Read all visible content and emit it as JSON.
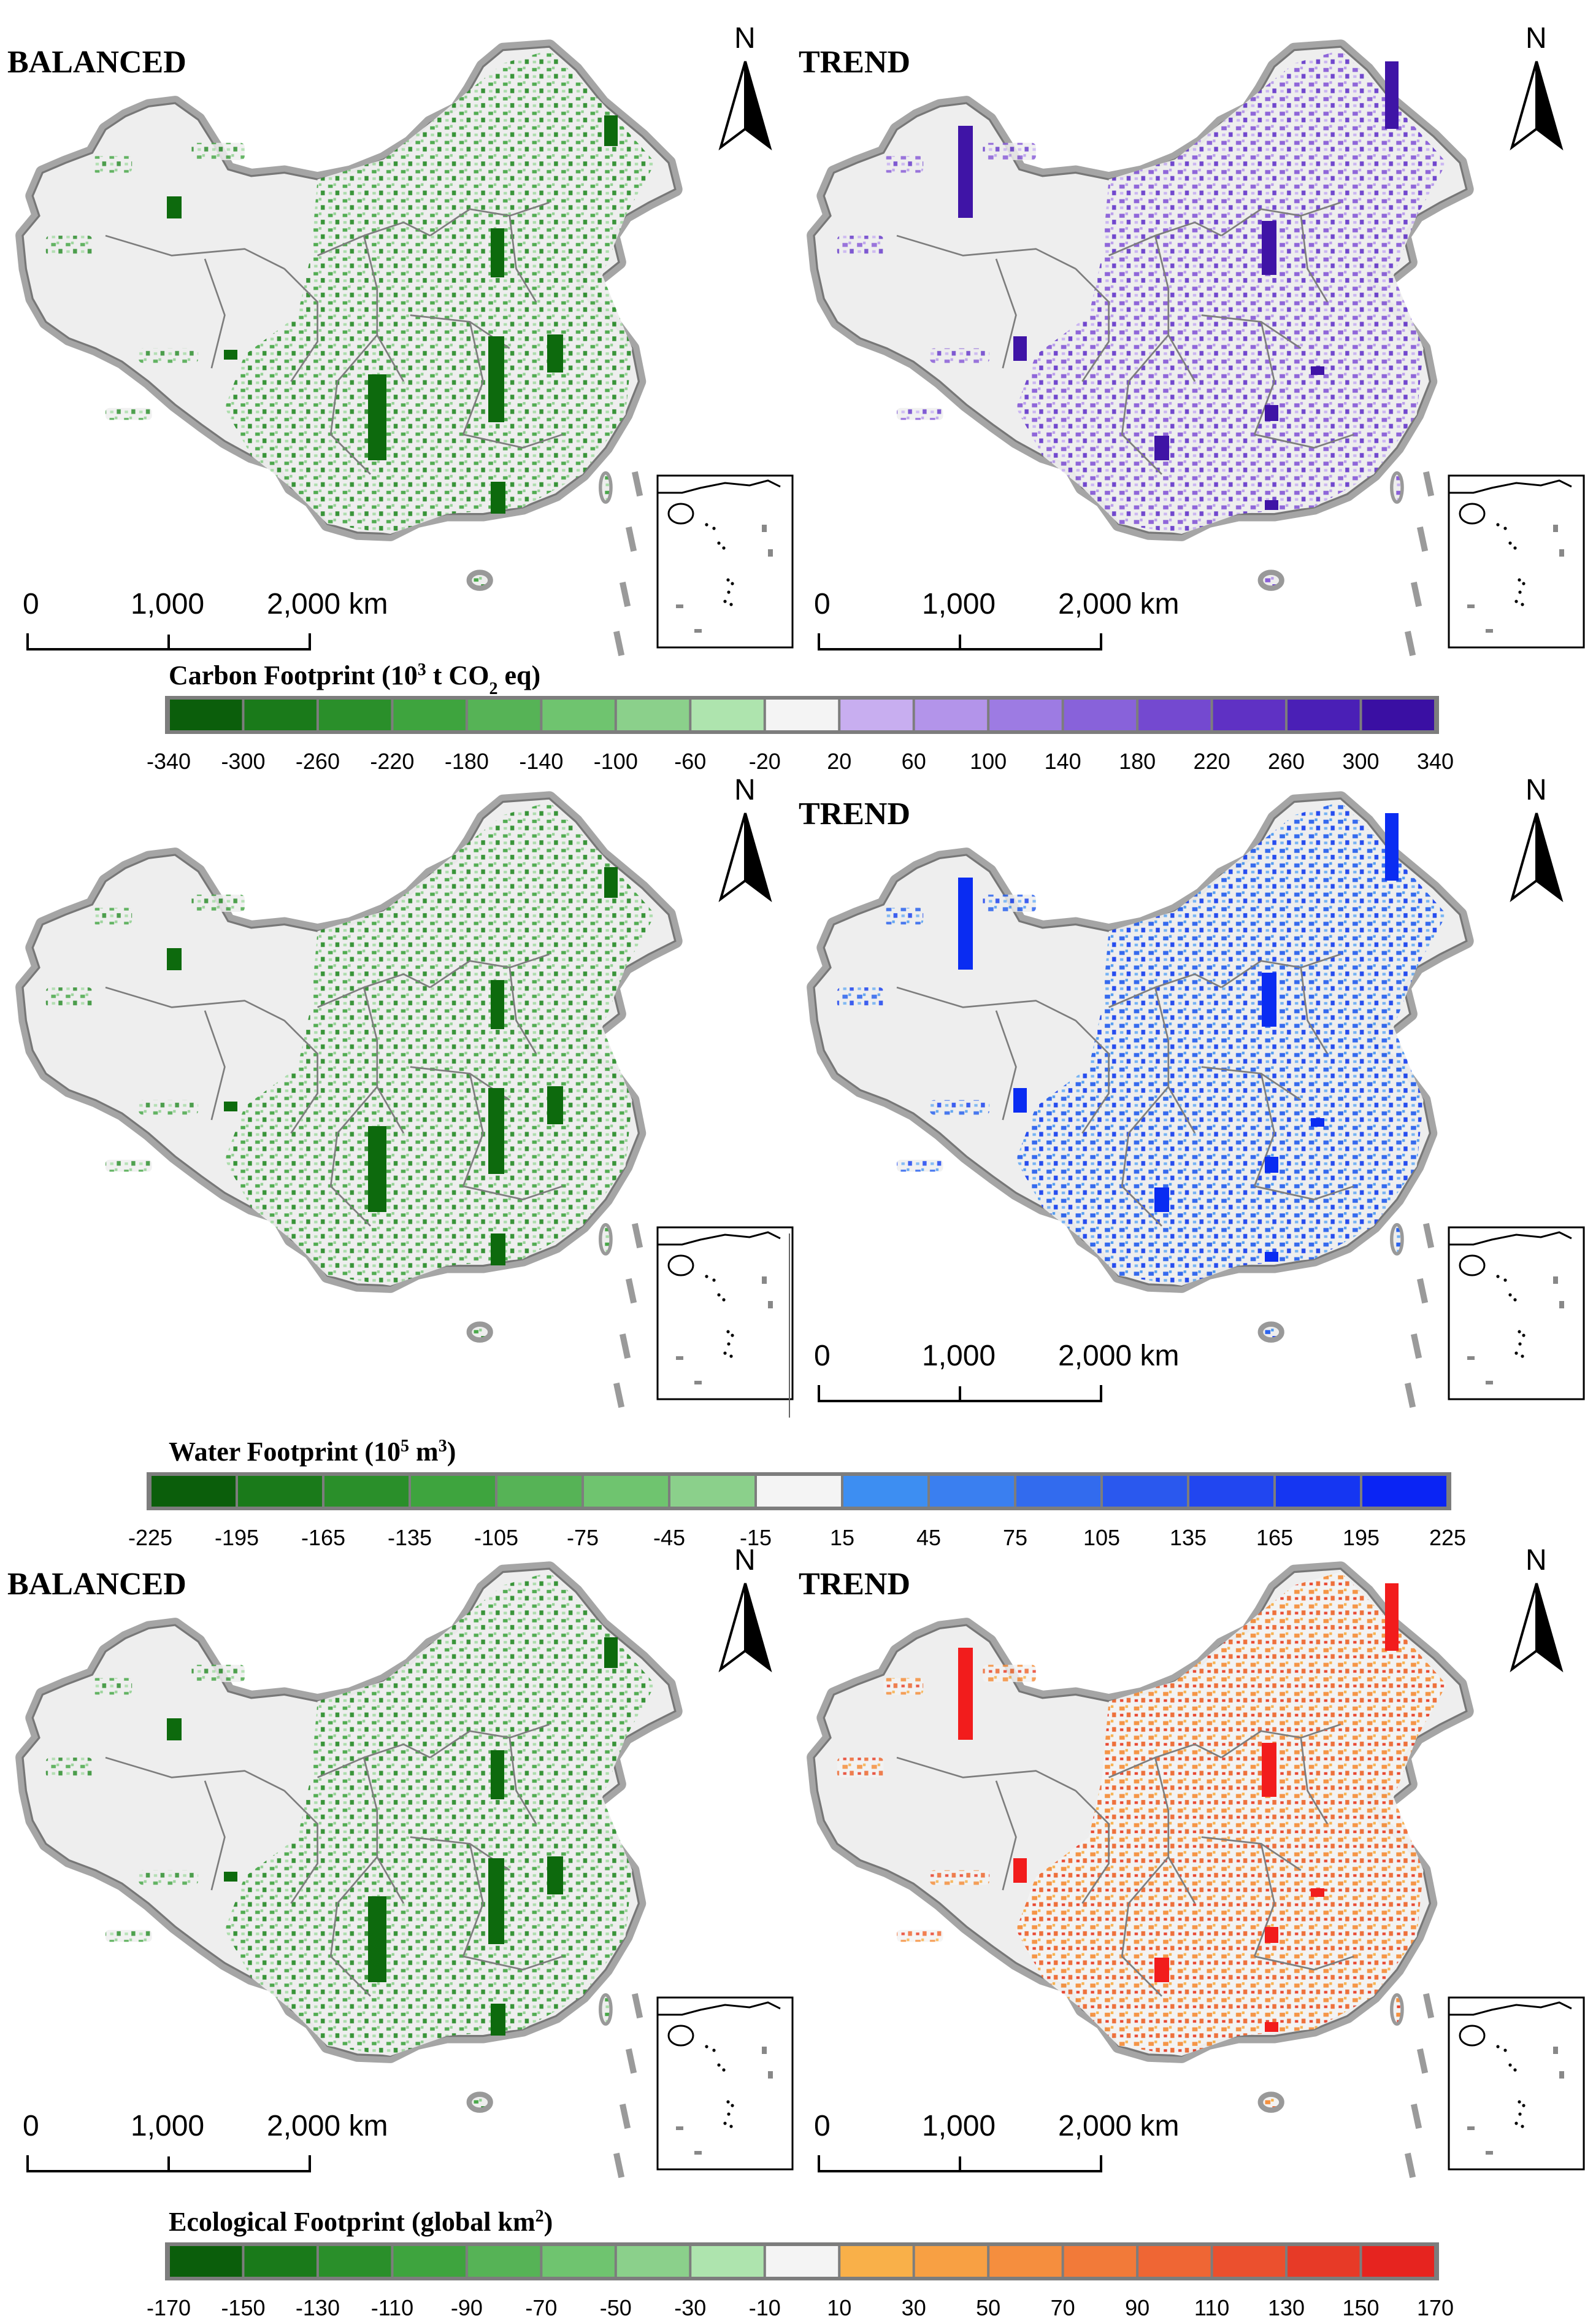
{
  "panels": [
    {
      "id": "carbon-balanced",
      "title": "BALANCED",
      "theme": "balanced"
    },
    {
      "id": "carbon-trend",
      "title": "TREND",
      "theme": "carbon"
    },
    {
      "id": "water-balanced",
      "title": "",
      "theme": "balanced"
    },
    {
      "id": "water-trend",
      "title": "TREND",
      "theme": "water"
    },
    {
      "id": "eco-balanced",
      "title": "BALANCED",
      "theme": "balanced"
    },
    {
      "id": "eco-trend",
      "title": "TREND",
      "theme": "eco"
    }
  ],
  "north_label": "N",
  "scalebar": {
    "t0": "0",
    "t1": "1,000",
    "t2": "2,000 km"
  },
  "legends": {
    "carbon": {
      "title_main": "Carbon Footprint (10",
      "title_sup": "3",
      "title_mid": " t CO",
      "title_sub": "2",
      "title_end": " eq)",
      "ticks": [
        "-340",
        "-300",
        "-260",
        "-220",
        "-180",
        "-140",
        "-100",
        "-60",
        "-20",
        "20",
        "60",
        "100",
        "140",
        "180",
        "220",
        "260",
        "300",
        "340"
      ],
      "colors": [
        "#0b5e0b",
        "#1a7a1a",
        "#2a8f2a",
        "#3ea43e",
        "#56b356",
        "#6fc46f",
        "#8bd08b",
        "#aee4ae",
        "#f4f4f4",
        "#c8aef0",
        "#b394ea",
        "#9d7be3",
        "#8862da",
        "#7449d0",
        "#5f31c4",
        "#4a1fb6",
        "#3a0fa3"
      ]
    },
    "water": {
      "title_main": "Water Footprint (10",
      "title_sup": "5",
      "title_end": " m",
      "title_sup2": "3",
      "title_close": ")",
      "ticks": [
        "-225",
        "-195",
        "-165",
        "-135",
        "-105",
        "-75",
        "-45",
        "-15",
        "15",
        "45",
        "75",
        "105",
        "135",
        "165",
        "195",
        "225"
      ],
      "colors": [
        "#0b5e0b",
        "#1a7a1a",
        "#2a8f2a",
        "#3ea43e",
        "#56b356",
        "#6fc46f",
        "#8bd08b",
        "#f4f4f4",
        "#3d8ef2",
        "#3a7ff0",
        "#326bee",
        "#2a58ee",
        "#2146f0",
        "#1536f2",
        "#0a24f4"
      ]
    },
    "eco": {
      "title_main": "Ecological Footprint (global km",
      "title_sup": "2",
      "title_close": ")",
      "ticks": [
        "-170",
        "-150",
        "-130",
        "-110",
        "-90",
        "-70",
        "-50",
        "-30",
        "-10",
        "10",
        "30",
        "50",
        "70",
        "90",
        "110",
        "130",
        "150",
        "170"
      ],
      "colors": [
        "#0b5e0b",
        "#1a7a1a",
        "#2a8f2a",
        "#3ea43e",
        "#56b356",
        "#6fc46f",
        "#8bd08b",
        "#aee4ae",
        "#f4f4f4",
        "#f9b049",
        "#f8a043",
        "#f58e3e",
        "#f27a39",
        "#ef6634",
        "#eb502e",
        "#e73a27",
        "#e6241f"
      ]
    }
  },
  "colors": {
    "land": "#eeeeee",
    "border": "#8a8a8a",
    "balanced_green": "#2e8b2e",
    "bar_balanced": "#0d6a0d",
    "bar_carbon": "#3f14a6",
    "bar_water": "#0a2cf2",
    "bar_eco": "#f21c1c"
  }
}
